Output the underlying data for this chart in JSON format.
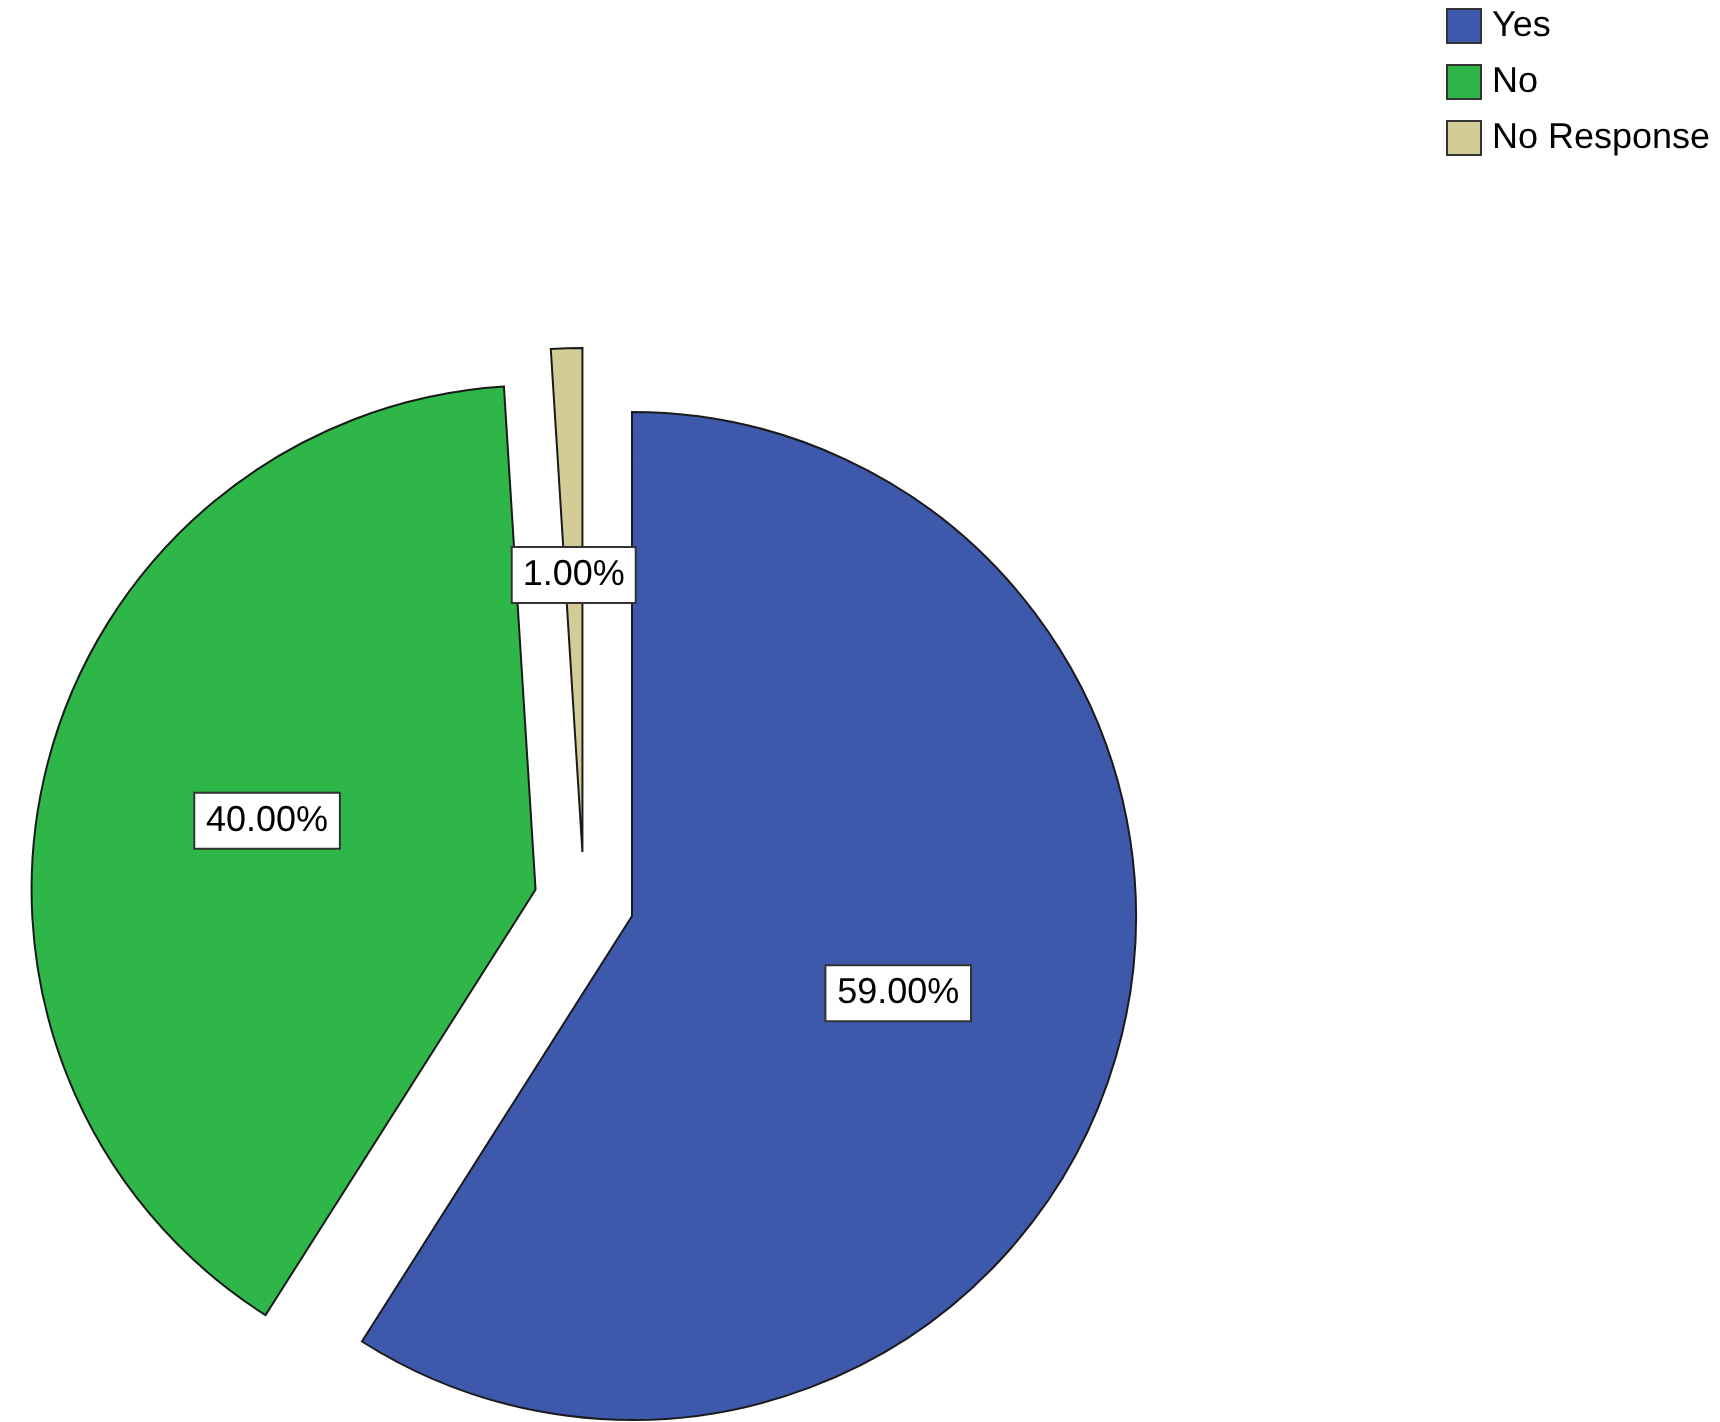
{
  "chart_data": {
    "type": "pie",
    "categories": [
      "Yes",
      "No",
      "No Response"
    ],
    "values": [
      59,
      40,
      1
    ],
    "colors": [
      "#3e58ac",
      "#2eb648",
      "#d4cc97"
    ],
    "value_labels": [
      "59.00%",
      "40.00%",
      "1.00%"
    ],
    "legend": "top right"
  }
}
